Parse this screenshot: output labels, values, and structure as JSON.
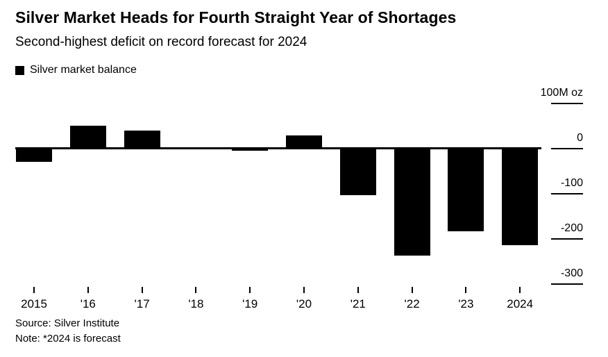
{
  "header": {
    "title": "Silver Market Heads for Fourth Straight Year of Shortages",
    "subtitle": "Second-highest deficit on record forecast for 2024"
  },
  "legend": {
    "label": "Silver market balance"
  },
  "footer": {
    "source": "Source: Silver Institute",
    "note": "Note: *2024 is forecast"
  },
  "chart_data": {
    "type": "bar",
    "title": "Silver Market Heads for Fourth Straight Year of Shortages",
    "subtitle": "Second-highest deficit on record forecast for 2024",
    "series_name": "Silver market balance",
    "categories": [
      "2015",
      "'16",
      "'17",
      "'18",
      "'19",
      "'20",
      "'21",
      "'22",
      "'23",
      "2024"
    ],
    "values": [
      -30,
      50,
      38,
      -3,
      -6,
      27,
      -105,
      -238,
      -184,
      -215
    ],
    "unit_label": "100M oz",
    "y_ticks": [
      100,
      0,
      -100,
      -200,
      -300
    ],
    "y_tick_labels": [
      "100M oz",
      "0",
      "-100",
      "-200",
      "-300"
    ],
    "ylim": [
      -300,
      100
    ],
    "bar_color": "#000000",
    "background_color": "#ffffff",
    "grid": false,
    "legend_position": "top-left"
  }
}
